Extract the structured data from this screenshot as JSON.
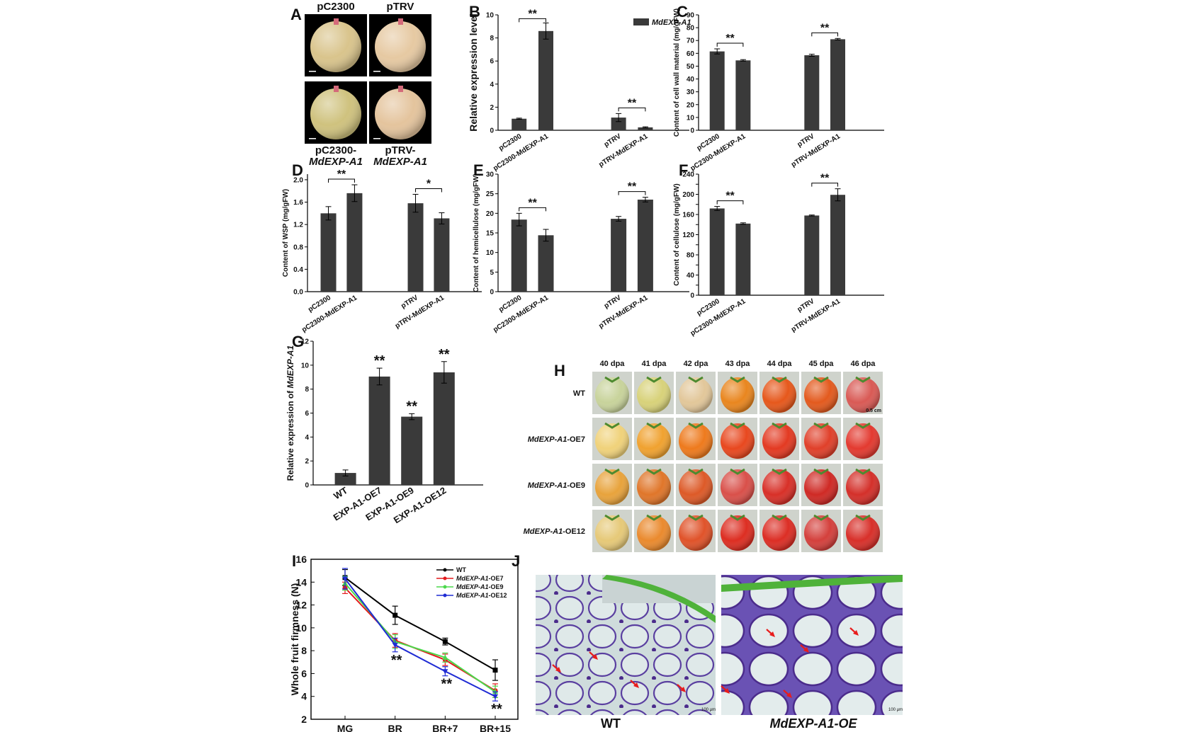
{
  "panels": {
    "A": {
      "label": "A",
      "top_labels": [
        "pC2300",
        "pTRV"
      ],
      "bottom_labels": [
        [
          "pC2300-",
          "MdEXP-A1"
        ],
        [
          "pTRV-",
          "MdEXP-A1"
        ]
      ],
      "bg": "#000000",
      "fruit_colors": [
        "#d9c48c",
        "#e6c9a2",
        "#cfc27e",
        "#e4c49d"
      ]
    },
    "H": {
      "label": "H",
      "days": [
        "40 dpa",
        "41 dpa",
        "42 dpa",
        "43 dpa",
        "44 dpa",
        "45 dpa",
        "46 dpa"
      ],
      "rows": [
        {
          "name": "WT",
          "italic": "",
          "suffix": "WT",
          "colors": [
            "#c8d39b",
            "#d8d27a",
            "#e2c79a",
            "#e9861f",
            "#e6581c",
            "#e35a1e",
            "#d95a55"
          ]
        },
        {
          "name": "MdEXP-A1-OE7",
          "italic": "MdEXP-A1",
          "suffix": "-OE7",
          "colors": [
            "#f0d27a",
            "#f0a230",
            "#ee7a1d",
            "#e8481f",
            "#e33a22",
            "#e0402a",
            "#e33a30"
          ]
        },
        {
          "name": "MdEXP-A1-OE9",
          "italic": "MdEXP-A1",
          "suffix": "-OE9",
          "colors": [
            "#e8a33c",
            "#e0762a",
            "#dd5a28",
            "#d9504a",
            "#d83028",
            "#cf2a25",
            "#d4302a"
          ]
        },
        {
          "name": "MdEXP-A1-OE12",
          "italic": "MdEXP-A1",
          "suffix": "-OE12",
          "colors": [
            "#e6c978",
            "#ea8a2e",
            "#e0532a",
            "#dd2e22",
            "#dc2e25",
            "#d4403c",
            "#d8302a"
          ]
        }
      ],
      "scale_text": "0.5 cm"
    },
    "J": {
      "label": "J",
      "captions": [
        "WT",
        "MdEXP-A1-OE"
      ],
      "scale_text": "100 μm"
    }
  },
  "chart_data": [
    {
      "panel": "B",
      "type": "bar",
      "ylabel": "Relative expression level",
      "categories": [
        "pC2300",
        "pC2300-MdEXP-A1",
        "pTRV",
        "pTRV-MdEXP-A1"
      ],
      "values": [
        1.0,
        8.6,
        1.1,
        0.25
      ],
      "errors": [
        0.05,
        0.7,
        0.35,
        0.05
      ],
      "ylim": [
        0,
        10
      ],
      "yticks": [
        0,
        2,
        4,
        6,
        8,
        10
      ],
      "series": [
        {
          "name": "MdEXP-A1",
          "color": "#3a3a3a"
        }
      ],
      "legend": "top-right",
      "significance": [
        {
          "pair": [
            0,
            1
          ],
          "text": "**"
        },
        {
          "pair": [
            2,
            3
          ],
          "text": "**"
        }
      ]
    },
    {
      "panel": "C",
      "type": "bar",
      "ylabel": "Content of cell wall material (mg/gFW)",
      "categories": [
        "pC2300",
        "pC2300-MdEXP-A1",
        "pTRV",
        "pTRV-MdEXP-A1"
      ],
      "values": [
        61.5,
        54.5,
        58.5,
        71.0
      ],
      "errors": [
        2.0,
        0.6,
        0.8,
        0.6
      ],
      "ylim": [
        0,
        90
      ],
      "yticks": [
        0,
        10,
        20,
        30,
        40,
        50,
        60,
        70,
        80,
        90
      ],
      "significance": [
        {
          "pair": [
            0,
            1
          ],
          "text": "**"
        },
        {
          "pair": [
            2,
            3
          ],
          "text": "**"
        }
      ]
    },
    {
      "panel": "D",
      "type": "bar",
      "ylabel": "Content of WSP (mg/gFW)",
      "categories": [
        "pC2300",
        "pC2300-MdEXP-A1",
        "pTRV",
        "pTRV-MdEXP-A1"
      ],
      "values": [
        1.4,
        1.76,
        1.58,
        1.31
      ],
      "errors": [
        0.12,
        0.15,
        0.16,
        0.1
      ],
      "ylim": [
        0,
        2.1
      ],
      "yticks": [
        0.0,
        0.4,
        0.8,
        1.2,
        1.6,
        2.0
      ],
      "significance": [
        {
          "pair": [
            0,
            1
          ],
          "text": "**"
        },
        {
          "pair": [
            2,
            3
          ],
          "text": "*"
        }
      ]
    },
    {
      "panel": "E",
      "type": "bar",
      "ylabel": "Content of hemicellulose (mg/gFW)",
      "categories": [
        "pC2300",
        "pC2300-MdEXP-A1",
        "pTRV",
        "pTRV-MdEXP-A1"
      ],
      "values": [
        18.4,
        14.4,
        18.6,
        23.5
      ],
      "errors": [
        1.6,
        1.5,
        0.6,
        0.6
      ],
      "ylim": [
        0,
        30
      ],
      "yticks": [
        0,
        5,
        10,
        15,
        20,
        25,
        30
      ],
      "significance": [
        {
          "pair": [
            0,
            1
          ],
          "text": "**"
        },
        {
          "pair": [
            2,
            3
          ],
          "text": "**"
        }
      ]
    },
    {
      "panel": "F",
      "type": "bar",
      "ylabel": "Content of cellulose (mg/gFW)",
      "categories": [
        "pC2300",
        "pC2300-MdEXP-A1",
        "pTRV",
        "pTRV-MdEXP-A1"
      ],
      "values": [
        172,
        142,
        158,
        199
      ],
      "errors": [
        4,
        1.5,
        1,
        12
      ],
      "ylim": [
        0,
        240
      ],
      "yticks": [
        0,
        20,
        40,
        60,
        80,
        100,
        120,
        140,
        160,
        180,
        200,
        220,
        240
      ],
      "ytick_labels_shown": [
        0,
        40,
        80,
        120,
        160,
        200,
        240
      ],
      "significance": [
        {
          "pair": [
            0,
            1
          ],
          "text": "**"
        },
        {
          "pair": [
            2,
            3
          ],
          "text": "**"
        }
      ]
    },
    {
      "panel": "G",
      "type": "bar",
      "ylabel_prefix": "Relative expression of ",
      "ylabel_italic": "MdEXP-A1",
      "categories": [
        "WT",
        "EXP-A1-OE7",
        "EXP-A1-OE9",
        "EXP-A1-OE12"
      ],
      "values": [
        1.0,
        9.05,
        5.7,
        9.4
      ],
      "errors": [
        0.25,
        0.7,
        0.25,
        0.9
      ],
      "ylim": [
        0,
        12
      ],
      "yticks": [
        0,
        2,
        4,
        6,
        8,
        10,
        12
      ],
      "significance_above": [
        "",
        "**",
        "**",
        "**"
      ]
    },
    {
      "panel": "I",
      "type": "line",
      "ylabel": "Whole fruit firmness (N)",
      "x": [
        "MG",
        "BR",
        "BR+7",
        "BR+15"
      ],
      "ylim": [
        2,
        16
      ],
      "yticks": [
        2,
        4,
        6,
        8,
        10,
        12,
        14,
        16
      ],
      "series": [
        {
          "name": "WT",
          "italic": "",
          "suffix": "WT",
          "color": "#000000",
          "marker": "square",
          "values": [
            14.4,
            11.1,
            8.8,
            6.3
          ],
          "errors": [
            0.7,
            0.8,
            0.3,
            0.9
          ]
        },
        {
          "name": "MdEXP-A1-OE7",
          "italic": "MdEXP-A1",
          "suffix": "-OE7",
          "color": "#e41a1c",
          "marker": "circle",
          "values": [
            13.5,
            8.9,
            7.2,
            4.5
          ],
          "errors": [
            0.5,
            0.6,
            0.5,
            0.6
          ]
        },
        {
          "name": "MdEXP-A1-OE9",
          "italic": "MdEXP-A1",
          "suffix": "-OE9",
          "color": "#4cd84c",
          "marker": "triangle-up",
          "values": [
            13.9,
            8.8,
            7.4,
            4.4
          ],
          "errors": [
            0.6,
            0.6,
            0.4,
            0.5
          ]
        },
        {
          "name": "MdEXP-A1-OE12",
          "italic": "MdEXP-A1",
          "suffix": "-OE12",
          "color": "#1f2bd4",
          "marker": "triangle-down",
          "values": [
            14.3,
            8.5,
            6.2,
            4.0
          ],
          "errors": [
            0.9,
            0.6,
            0.4,
            0.4
          ]
        }
      ],
      "legend": "top-right",
      "significance_below": [
        "",
        "**",
        "**",
        "**"
      ]
    }
  ]
}
